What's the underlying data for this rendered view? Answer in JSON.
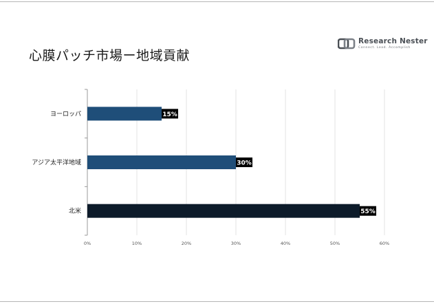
{
  "title": "心膜パッチ市場ー地域貢献",
  "logo": {
    "name": "Research Nester",
    "tagline": "Connect. Lead. Accomplish"
  },
  "colors": {
    "bar_europe": "#1f4e79",
    "bar_apac": "#1f4e79",
    "bar_na": "#0d1b2a",
    "label_bg": "#000000",
    "grid": "#e3e3e3",
    "axis": "#9a9a9a"
  },
  "chart_data": {
    "type": "bar",
    "orientation": "horizontal",
    "title": "心膜パッチ市場ー地域貢献",
    "categories": [
      "ヨーロッパ",
      "アジア太平洋地域",
      "北米"
    ],
    "values": [
      15,
      30,
      55
    ],
    "value_labels": [
      "15%",
      "30%",
      "55%"
    ],
    "xlim": [
      0,
      60
    ],
    "xticks": [
      "0%",
      "10%",
      "20%",
      "30%",
      "40%",
      "50%",
      "60%"
    ],
    "grid": true,
    "legend": "none"
  }
}
